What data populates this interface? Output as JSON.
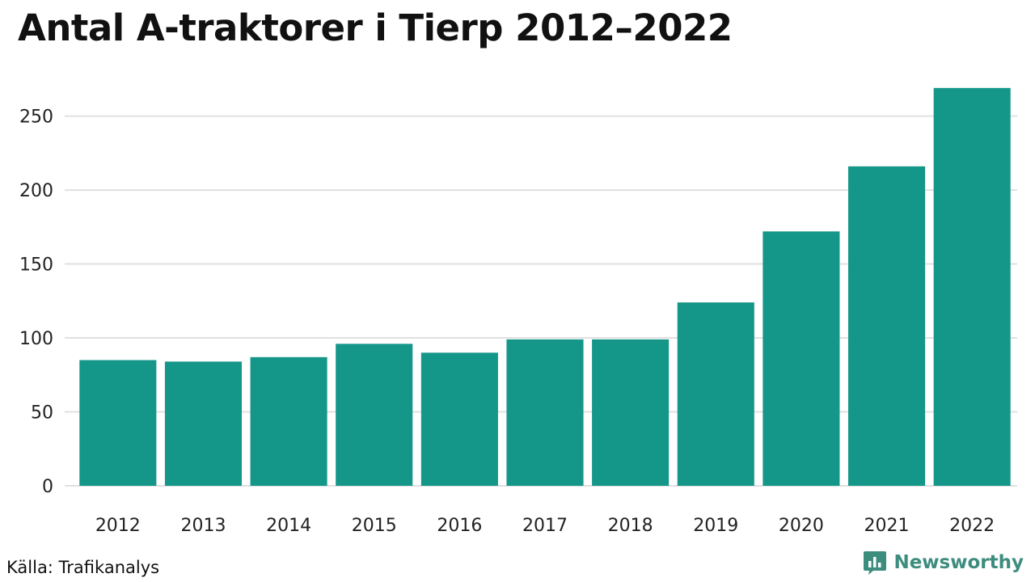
{
  "colors": {
    "bar": "#149688",
    "grid": "#e0e0e0",
    "brand": "#3d8d7f"
  },
  "brand": {
    "name": "Newsworthy",
    "icon": "newsworthy-logo-icon"
  },
  "source": "Källa: Trafikanalys",
  "chart_data": {
    "type": "bar",
    "title": "Antal A-traktorer i Tierp 2012–2022",
    "xlabel": "",
    "ylabel": "",
    "categories": [
      "2012",
      "2013",
      "2014",
      "2015",
      "2016",
      "2017",
      "2018",
      "2019",
      "2020",
      "2021",
      "2022"
    ],
    "values": [
      85,
      84,
      87,
      96,
      90,
      99,
      99,
      124,
      172,
      216,
      269
    ],
    "ylim": [
      0,
      270
    ],
    "yticks": [
      0,
      50,
      100,
      150,
      200,
      250
    ],
    "grid": true
  }
}
